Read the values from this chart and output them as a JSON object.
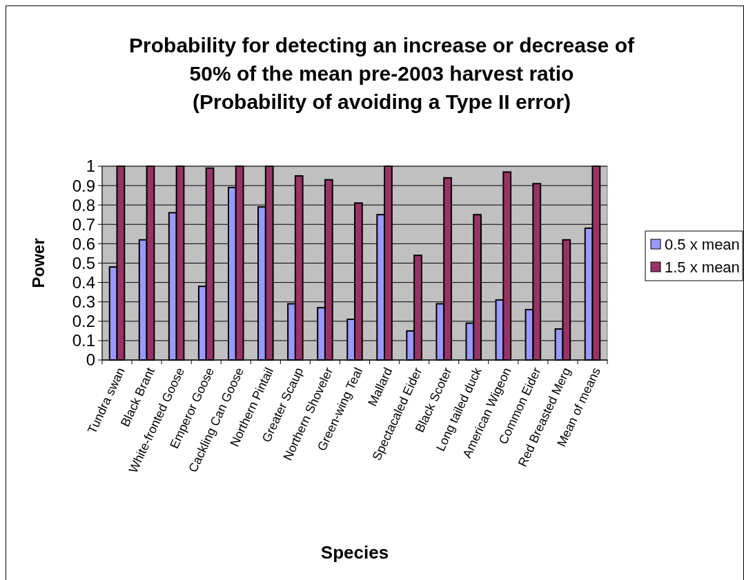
{
  "chart_data": {
    "type": "bar",
    "title": "Probability for detecting an increase or decrease of\n50% of the mean pre-2003 harvest ratio\n(Probability of avoiding a Type II error)",
    "xlabel": "Species",
    "ylabel": "Power",
    "categories": [
      "Tundra swan",
      "Black Brant",
      "White-fronted Goose",
      "Emperor Goose",
      "Cackling Can Goose",
      "Northern Pintail",
      "Greater Scaup",
      "Northern Shoveler",
      "Green-wing Teal",
      "Mallard",
      "Spectacaled Eider",
      "Black Scoter",
      "Long tailed duck",
      "American Wigeon",
      "Common Eider",
      "Red Breasted Merg",
      "Mean of means"
    ],
    "series": [
      {
        "name": "0.5 x mean",
        "color": "#9999ff",
        "values": [
          0.48,
          0.62,
          0.76,
          0.38,
          0.89,
          0.79,
          0.29,
          0.27,
          0.21,
          0.75,
          0.15,
          0.29,
          0.19,
          0.31,
          0.26,
          0.16,
          0.68
        ]
      },
      {
        "name": "1.5 x mean",
        "color": "#993366",
        "values": [
          1,
          1,
          1,
          0.99,
          1,
          1,
          0.95,
          0.93,
          0.81,
          1,
          0.54,
          0.94,
          0.75,
          0.97,
          0.91,
          0.62,
          1
        ]
      }
    ],
    "ylim": [
      0,
      1
    ],
    "yticks": [
      0,
      0.1,
      0.2,
      0.3,
      0.4,
      0.5,
      0.6,
      0.7,
      0.8,
      0.9,
      1
    ],
    "grid": "y",
    "legend": "right"
  }
}
